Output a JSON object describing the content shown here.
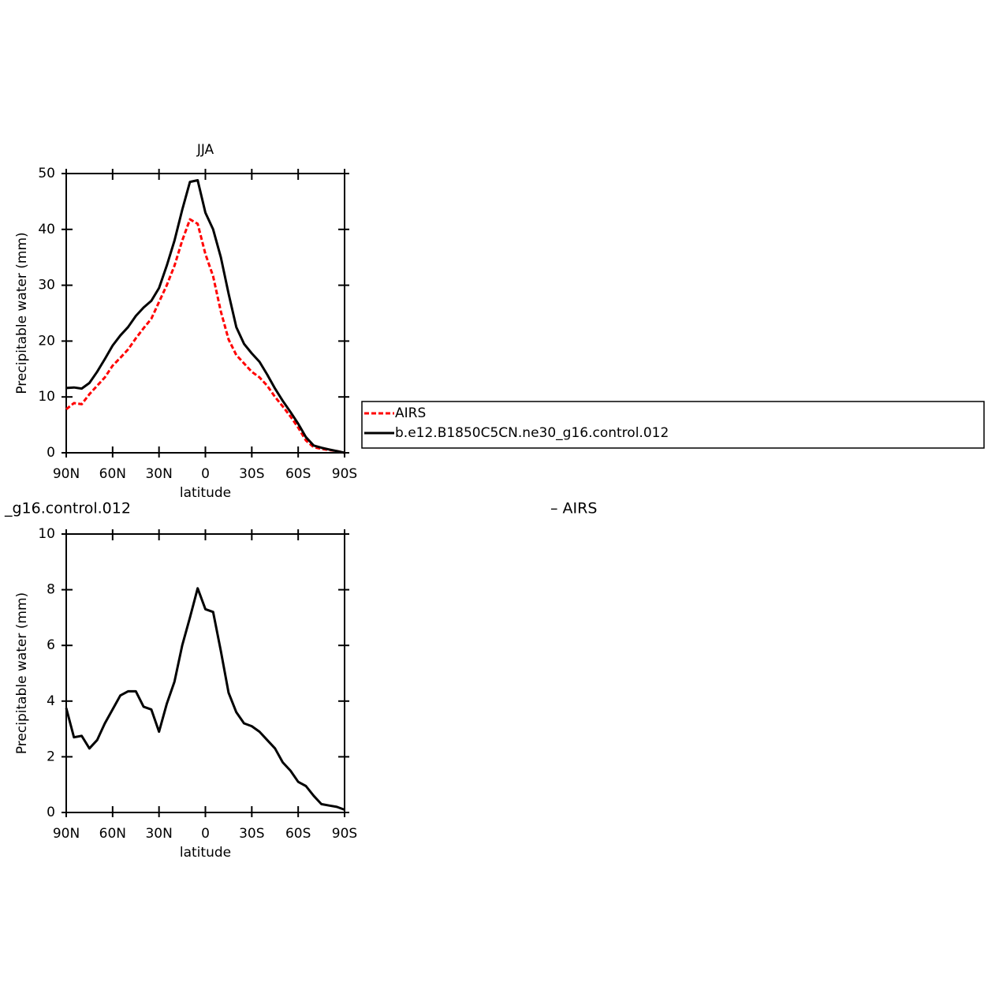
{
  "chart_data": [
    {
      "type": "line",
      "title": "JJA",
      "xlabel": "latitude",
      "ylabel": "Precipitable water (mm)",
      "x": [
        90,
        85,
        80,
        75,
        70,
        65,
        60,
        55,
        50,
        45,
        40,
        35,
        30,
        25,
        20,
        15,
        10,
        5,
        0,
        -5,
        -10,
        -15,
        -20,
        -25,
        -30,
        -35,
        -40,
        -45,
        -50,
        -55,
        -60,
        -65,
        -70,
        -75,
        -80,
        -85,
        -90
      ],
      "series": [
        {
          "name": "AIRS",
          "color": "#ff0000",
          "dashed": true,
          "values": [
            7.8,
            8.9,
            8.7,
            10.5,
            12,
            13.5,
            15.6,
            17,
            18.5,
            20.5,
            22.3,
            24,
            27,
            30,
            33.5,
            38,
            41.8,
            41,
            35.6,
            31.6,
            25.3,
            20.3,
            17.5,
            16,
            14.5,
            13.5,
            12,
            10,
            8.3,
            6.5,
            4.5,
            2.2,
            1.0,
            0.7,
            0.5,
            0.3,
            0
          ]
        },
        {
          "name": "b.e12.B1850C5CN.ne30_g16.control.012",
          "color": "#000000",
          "dashed": false,
          "values": [
            11.6,
            11.7,
            11.5,
            12.5,
            14.5,
            16.8,
            19.2,
            21,
            22.5,
            24.5,
            26,
            27.2,
            29.5,
            33.5,
            38,
            43.5,
            48.5,
            48.8,
            43,
            40,
            35,
            28.5,
            22.5,
            19.5,
            17.8,
            16.3,
            14,
            11.5,
            9.3,
            7.3,
            5.2,
            2.8,
            1.3,
            0.9,
            0.6,
            0.3,
            0
          ]
        }
      ],
      "xlim": [
        90,
        -90
      ],
      "ylim": [
        0,
        50
      ],
      "xticks": [
        {
          "value": 90,
          "label": "90N"
        },
        {
          "value": 60,
          "label": "60N"
        },
        {
          "value": 30,
          "label": "30N"
        },
        0,
        {
          "value": -30,
          "label": "30S"
        },
        {
          "value": -60,
          "label": "60S"
        },
        {
          "value": -90,
          "label": "90S"
        }
      ],
      "yticks": [
        0,
        10,
        20,
        30,
        40,
        50
      ]
    },
    {
      "type": "line",
      "title_left": "_g16.control.012",
      "title_right": "– AIRS",
      "xlabel": "latitude",
      "ylabel": "Precipitable water (mm)",
      "x": [
        90,
        85,
        80,
        75,
        70,
        65,
        60,
        55,
        50,
        45,
        40,
        35,
        30,
        25,
        20,
        15,
        10,
        5,
        0,
        -5,
        -10,
        -15,
        -20,
        -25,
        -30,
        -35,
        -40,
        -45,
        -50,
        -55,
        -60,
        -65,
        -70,
        -75,
        -80,
        -85,
        -90
      ],
      "series": [
        {
          "color": "#000000",
          "dashed": false,
          "values": [
            3.75,
            2.7,
            2.75,
            2.3,
            2.6,
            3.2,
            3.7,
            4.2,
            4.35,
            4.35,
            3.8,
            3.7,
            2.9,
            3.9,
            4.7,
            6.0,
            7.0,
            8.05,
            7.3,
            7.2,
            5.8,
            4.3,
            3.6,
            3.2,
            3.1,
            2.9,
            2.6,
            2.3,
            1.8,
            1.5,
            1.1,
            0.95,
            0.6,
            0.3,
            0.25,
            0.2,
            0.1
          ]
        }
      ],
      "xlim": [
        90,
        -90
      ],
      "ylim": [
        0,
        10
      ],
      "xticks": [
        {
          "value": 90,
          "label": "90N"
        },
        {
          "value": 60,
          "label": "60N"
        },
        {
          "value": 30,
          "label": "30N"
        },
        0,
        {
          "value": -30,
          "label": "30S"
        },
        {
          "value": -60,
          "label": "60S"
        },
        {
          "value": -90,
          "label": "90S"
        }
      ],
      "yticks": [
        0,
        2,
        4,
        6,
        8,
        10
      ]
    }
  ]
}
